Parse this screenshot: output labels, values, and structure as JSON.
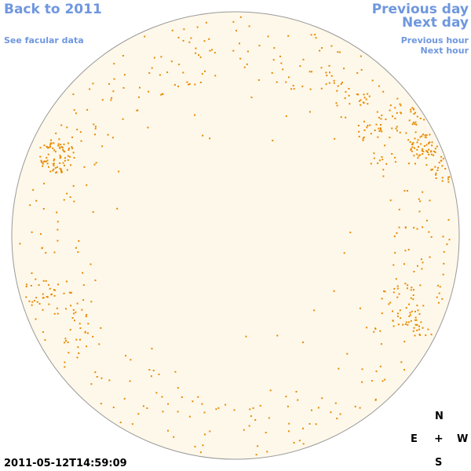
{
  "nav": {
    "back_label": "Back to 2011",
    "facular_label": "See facular data",
    "prev_day_label": "Previous day",
    "next_day_label": "Next day",
    "prev_hour_label": "Previous hour",
    "next_hour_label": "Next hour"
  },
  "compass": {
    "north": "N",
    "east": "E",
    "center": "+",
    "west": "W",
    "south": "S"
  },
  "timestamp": "2011-05-12T14:59:09",
  "colors": {
    "link": "#6f97df",
    "disk_fill": "#fef8ea",
    "disk_stroke": "#999999",
    "facula": "#e88a00"
  }
}
